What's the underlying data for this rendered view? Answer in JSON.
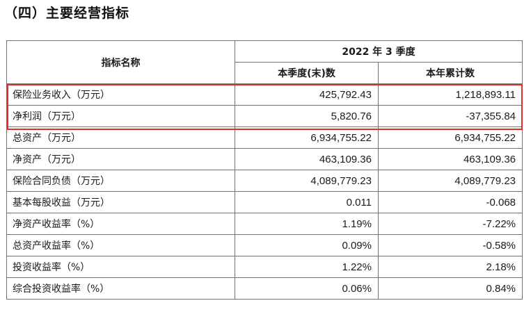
{
  "section_title": "（四）主要经营指标",
  "table": {
    "header": {
      "name_col": "指标名称",
      "period": "2022 年 3 季度",
      "col_quarter": "本季度(末)数",
      "col_ytd": "本年累计数"
    },
    "rows": [
      {
        "label": "保险业务收入（万元）",
        "quarter": "425,792.43",
        "ytd": "1,218,893.11"
      },
      {
        "label": "净利润（万元）",
        "quarter": "5,820.76",
        "ytd": "-37,355.84"
      },
      {
        "label": "总资产（万元）",
        "quarter": "6,934,755.22",
        "ytd": "6,934,755.22"
      },
      {
        "label": "净资产（万元）",
        "quarter": "463,109.36",
        "ytd": "463,109.36"
      },
      {
        "label": "保险合同负债（万元）",
        "quarter": "4,089,779.23",
        "ytd": "4,089,779.23"
      },
      {
        "label": "基本每股收益（万元）",
        "quarter": "0.011",
        "ytd": "-0.068"
      },
      {
        "label": "净资产收益率（%）",
        "quarter": "1.19%",
        "ytd": "-7.22%"
      },
      {
        "label": "总资产收益率（%）",
        "quarter": "0.09%",
        "ytd": "-0.58%"
      },
      {
        "label": "投资收益率（%）",
        "quarter": "1.22%",
        "ytd": "2.18%"
      },
      {
        "label": "综合投资收益率（%）",
        "quarter": "0.06%",
        "ytd": "0.84%"
      }
    ]
  },
  "highlight": {
    "color": "#e0302c"
  }
}
